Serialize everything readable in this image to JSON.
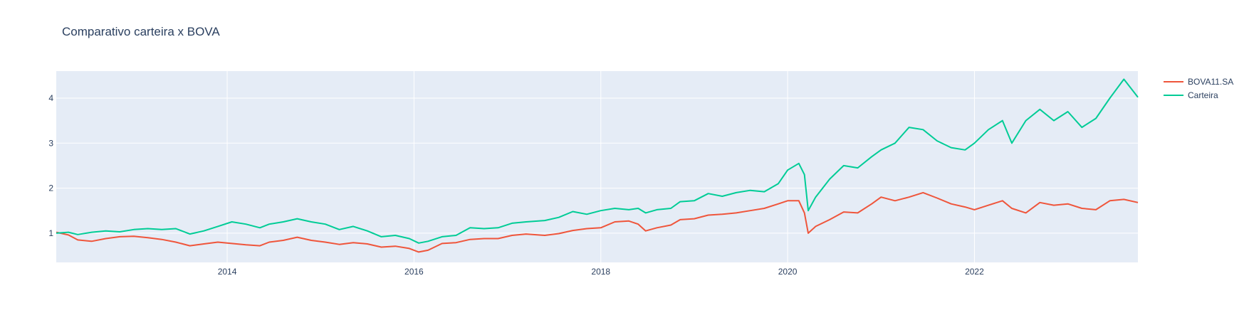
{
  "chart_data": {
    "type": "line",
    "title": "Comparativo carteira x BOVA",
    "xlabel": "",
    "ylabel": "",
    "xlim": [
      2012.17,
      2023.75
    ],
    "ylim": [
      0.35,
      4.6
    ],
    "x_ticks": [
      {
        "value": 2014,
        "label": "2014"
      },
      {
        "value": 2016,
        "label": "2016"
      },
      {
        "value": 2018,
        "label": "2018"
      },
      {
        "value": 2020,
        "label": "2020"
      },
      {
        "value": 2022,
        "label": "2022"
      }
    ],
    "y_ticks": [
      {
        "value": 1,
        "label": "1"
      },
      {
        "value": 2,
        "label": "2"
      },
      {
        "value": 3,
        "label": "3"
      },
      {
        "value": 4,
        "label": "4"
      }
    ],
    "grid": true,
    "plot_bg": "#e5ecf6",
    "legend_position": "top-right",
    "series": [
      {
        "name": "BOVA11.SA",
        "color": "#ef553b",
        "points": [
          [
            2012.17,
            1.02
          ],
          [
            2012.3,
            0.96
          ],
          [
            2012.4,
            0.85
          ],
          [
            2012.55,
            0.82
          ],
          [
            2012.7,
            0.88
          ],
          [
            2012.85,
            0.92
          ],
          [
            2013.0,
            0.93
          ],
          [
            2013.15,
            0.9
          ],
          [
            2013.3,
            0.86
          ],
          [
            2013.45,
            0.8
          ],
          [
            2013.6,
            0.72
          ],
          [
            2013.75,
            0.76
          ],
          [
            2013.9,
            0.8
          ],
          [
            2014.05,
            0.77
          ],
          [
            2014.2,
            0.74
          ],
          [
            2014.35,
            0.72
          ],
          [
            2014.45,
            0.8
          ],
          [
            2014.6,
            0.84
          ],
          [
            2014.75,
            0.91
          ],
          [
            2014.9,
            0.84
          ],
          [
            2015.05,
            0.8
          ],
          [
            2015.2,
            0.75
          ],
          [
            2015.35,
            0.79
          ],
          [
            2015.5,
            0.76
          ],
          [
            2015.65,
            0.69
          ],
          [
            2015.8,
            0.71
          ],
          [
            2015.95,
            0.66
          ],
          [
            2016.05,
            0.58
          ],
          [
            2016.15,
            0.62
          ],
          [
            2016.3,
            0.77
          ],
          [
            2016.45,
            0.79
          ],
          [
            2016.6,
            0.86
          ],
          [
            2016.75,
            0.88
          ],
          [
            2016.9,
            0.88
          ],
          [
            2017.05,
            0.95
          ],
          [
            2017.2,
            0.98
          ],
          [
            2017.4,
            0.95
          ],
          [
            2017.55,
            0.99
          ],
          [
            2017.7,
            1.06
          ],
          [
            2017.85,
            1.1
          ],
          [
            2018.0,
            1.12
          ],
          [
            2018.15,
            1.25
          ],
          [
            2018.3,
            1.27
          ],
          [
            2018.4,
            1.2
          ],
          [
            2018.48,
            1.05
          ],
          [
            2018.6,
            1.12
          ],
          [
            2018.75,
            1.18
          ],
          [
            2018.85,
            1.3
          ],
          [
            2019.0,
            1.32
          ],
          [
            2019.15,
            1.4
          ],
          [
            2019.3,
            1.42
          ],
          [
            2019.45,
            1.45
          ],
          [
            2019.6,
            1.5
          ],
          [
            2019.75,
            1.55
          ],
          [
            2019.9,
            1.65
          ],
          [
            2020.0,
            1.72
          ],
          [
            2020.12,
            1.72
          ],
          [
            2020.18,
            1.45
          ],
          [
            2020.22,
            1.0
          ],
          [
            2020.3,
            1.15
          ],
          [
            2020.45,
            1.3
          ],
          [
            2020.6,
            1.47
          ],
          [
            2020.75,
            1.45
          ],
          [
            2020.9,
            1.65
          ],
          [
            2021.0,
            1.8
          ],
          [
            2021.15,
            1.72
          ],
          [
            2021.3,
            1.8
          ],
          [
            2021.45,
            1.9
          ],
          [
            2021.6,
            1.78
          ],
          [
            2021.75,
            1.65
          ],
          [
            2021.9,
            1.58
          ],
          [
            2022.0,
            1.52
          ],
          [
            2022.15,
            1.62
          ],
          [
            2022.3,
            1.72
          ],
          [
            2022.4,
            1.55
          ],
          [
            2022.55,
            1.45
          ],
          [
            2022.7,
            1.68
          ],
          [
            2022.85,
            1.62
          ],
          [
            2023.0,
            1.65
          ],
          [
            2023.15,
            1.55
          ],
          [
            2023.3,
            1.52
          ],
          [
            2023.45,
            1.72
          ],
          [
            2023.6,
            1.75
          ],
          [
            2023.75,
            1.68
          ]
        ]
      },
      {
        "name": "Carteira",
        "color": "#00cc96",
        "points": [
          [
            2012.17,
            1.0
          ],
          [
            2012.3,
            1.02
          ],
          [
            2012.4,
            0.97
          ],
          [
            2012.55,
            1.02
          ],
          [
            2012.7,
            1.05
          ],
          [
            2012.85,
            1.03
          ],
          [
            2013.0,
            1.08
          ],
          [
            2013.15,
            1.1
          ],
          [
            2013.3,
            1.08
          ],
          [
            2013.45,
            1.1
          ],
          [
            2013.6,
            0.98
          ],
          [
            2013.75,
            1.05
          ],
          [
            2013.9,
            1.15
          ],
          [
            2014.05,
            1.25
          ],
          [
            2014.2,
            1.2
          ],
          [
            2014.35,
            1.12
          ],
          [
            2014.45,
            1.2
          ],
          [
            2014.6,
            1.25
          ],
          [
            2014.75,
            1.32
          ],
          [
            2014.9,
            1.25
          ],
          [
            2015.05,
            1.2
          ],
          [
            2015.2,
            1.08
          ],
          [
            2015.35,
            1.15
          ],
          [
            2015.5,
            1.05
          ],
          [
            2015.65,
            0.92
          ],
          [
            2015.8,
            0.95
          ],
          [
            2015.95,
            0.88
          ],
          [
            2016.05,
            0.78
          ],
          [
            2016.15,
            0.82
          ],
          [
            2016.3,
            0.92
          ],
          [
            2016.45,
            0.95
          ],
          [
            2016.6,
            1.12
          ],
          [
            2016.75,
            1.1
          ],
          [
            2016.9,
            1.12
          ],
          [
            2017.05,
            1.22
          ],
          [
            2017.2,
            1.25
          ],
          [
            2017.4,
            1.28
          ],
          [
            2017.55,
            1.35
          ],
          [
            2017.7,
            1.48
          ],
          [
            2017.85,
            1.42
          ],
          [
            2018.0,
            1.5
          ],
          [
            2018.15,
            1.55
          ],
          [
            2018.3,
            1.52
          ],
          [
            2018.4,
            1.55
          ],
          [
            2018.48,
            1.45
          ],
          [
            2018.6,
            1.52
          ],
          [
            2018.75,
            1.55
          ],
          [
            2018.85,
            1.7
          ],
          [
            2019.0,
            1.72
          ],
          [
            2019.15,
            1.88
          ],
          [
            2019.3,
            1.82
          ],
          [
            2019.45,
            1.9
          ],
          [
            2019.6,
            1.95
          ],
          [
            2019.75,
            1.92
          ],
          [
            2019.9,
            2.1
          ],
          [
            2020.0,
            2.4
          ],
          [
            2020.12,
            2.55
          ],
          [
            2020.18,
            2.3
          ],
          [
            2020.22,
            1.5
          ],
          [
            2020.3,
            1.8
          ],
          [
            2020.45,
            2.2
          ],
          [
            2020.6,
            2.5
          ],
          [
            2020.75,
            2.45
          ],
          [
            2020.9,
            2.7
          ],
          [
            2021.0,
            2.85
          ],
          [
            2021.15,
            3.0
          ],
          [
            2021.3,
            3.35
          ],
          [
            2021.45,
            3.3
          ],
          [
            2021.6,
            3.05
          ],
          [
            2021.75,
            2.9
          ],
          [
            2021.9,
            2.85
          ],
          [
            2022.0,
            3.0
          ],
          [
            2022.15,
            3.3
          ],
          [
            2022.3,
            3.5
          ],
          [
            2022.4,
            3.0
          ],
          [
            2022.55,
            3.5
          ],
          [
            2022.7,
            3.75
          ],
          [
            2022.85,
            3.5
          ],
          [
            2023.0,
            3.7
          ],
          [
            2023.15,
            3.35
          ],
          [
            2023.3,
            3.55
          ],
          [
            2023.45,
            4.0
          ],
          [
            2023.6,
            4.42
          ],
          [
            2023.75,
            4.02
          ]
        ]
      }
    ]
  }
}
